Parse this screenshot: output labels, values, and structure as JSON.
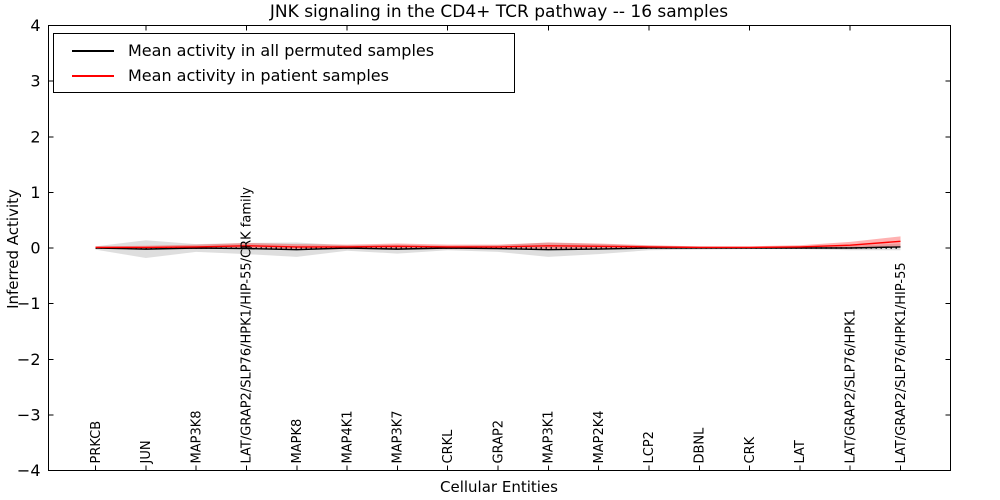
{
  "figure": {
    "title": "JNK signaling in the CD4+ TCR pathway -- 16 samples",
    "xlabel": "Cellular Entities",
    "ylabel": "Inferred Activity"
  },
  "legend": {
    "items": [
      {
        "label": "Mean activity in all permuted samples",
        "color": "#000000"
      },
      {
        "label": "Mean activity in patient samples",
        "color": "#ff0000"
      }
    ],
    "position": "upper left"
  },
  "chart_data": {
    "type": "line",
    "title": "JNK signaling in the CD4+ TCR pathway -- 16 samples",
    "xlabel": "Cellular Entities",
    "ylabel": "Inferred Activity",
    "ylim": [
      -4,
      4
    ],
    "yticks": [
      4,
      3,
      2,
      1,
      0,
      -1,
      -2,
      -3,
      -4
    ],
    "grid": false,
    "legend_position": "upper left",
    "categories": [
      "PRKCB",
      "JUN",
      "MAP3K8",
      "LAT/GRAP2/SLP76/HPK1/HIP-55/CRK family",
      "MAPK8",
      "MAP4K1",
      "MAP3K7",
      "CRKL",
      "GRAP2",
      "MAP3K1",
      "MAP2K4",
      "LCP2",
      "DBNL",
      "CRK",
      "LAT",
      "LAT/GRAP2/SLP76/HPK1",
      "LAT/GRAP2/SLP76/HPK1/HIP-55"
    ],
    "series": [
      {
        "name": "Mean activity in all permuted samples",
        "color": "#000000",
        "values": [
          0,
          -0.02,
          0,
          -0.01,
          -0.03,
          0,
          -0.02,
          0,
          -0.01,
          -0.03,
          -0.02,
          0,
          0,
          0,
          0,
          0,
          0.02
        ],
        "band": [
          0.03,
          0.16,
          0.07,
          0.1,
          0.13,
          0.05,
          0.08,
          0.04,
          0.06,
          0.13,
          0.09,
          0.04,
          0.03,
          0.02,
          0.02,
          0.04,
          0.06
        ],
        "band_color": "rgba(0,0,0,0.13)"
      },
      {
        "name": "Mean activity in patient samples",
        "color": "#ff0000",
        "values": [
          0.01,
          0.01,
          0.02,
          0.04,
          0.02,
          0.02,
          0.03,
          0.02,
          0.02,
          0.04,
          0.03,
          0.02,
          0.01,
          0.01,
          0.02,
          0.05,
          0.12
        ],
        "band": [
          0.02,
          0.03,
          0.04,
          0.05,
          0.05,
          0.04,
          0.05,
          0.04,
          0.04,
          0.06,
          0.05,
          0.03,
          0.02,
          0.02,
          0.03,
          0.06,
          0.09
        ],
        "band_color": "rgba(255,0,0,0.30)"
      }
    ],
    "zero_line": {
      "y": 0,
      "style": "dotted",
      "color": "#000000"
    }
  }
}
